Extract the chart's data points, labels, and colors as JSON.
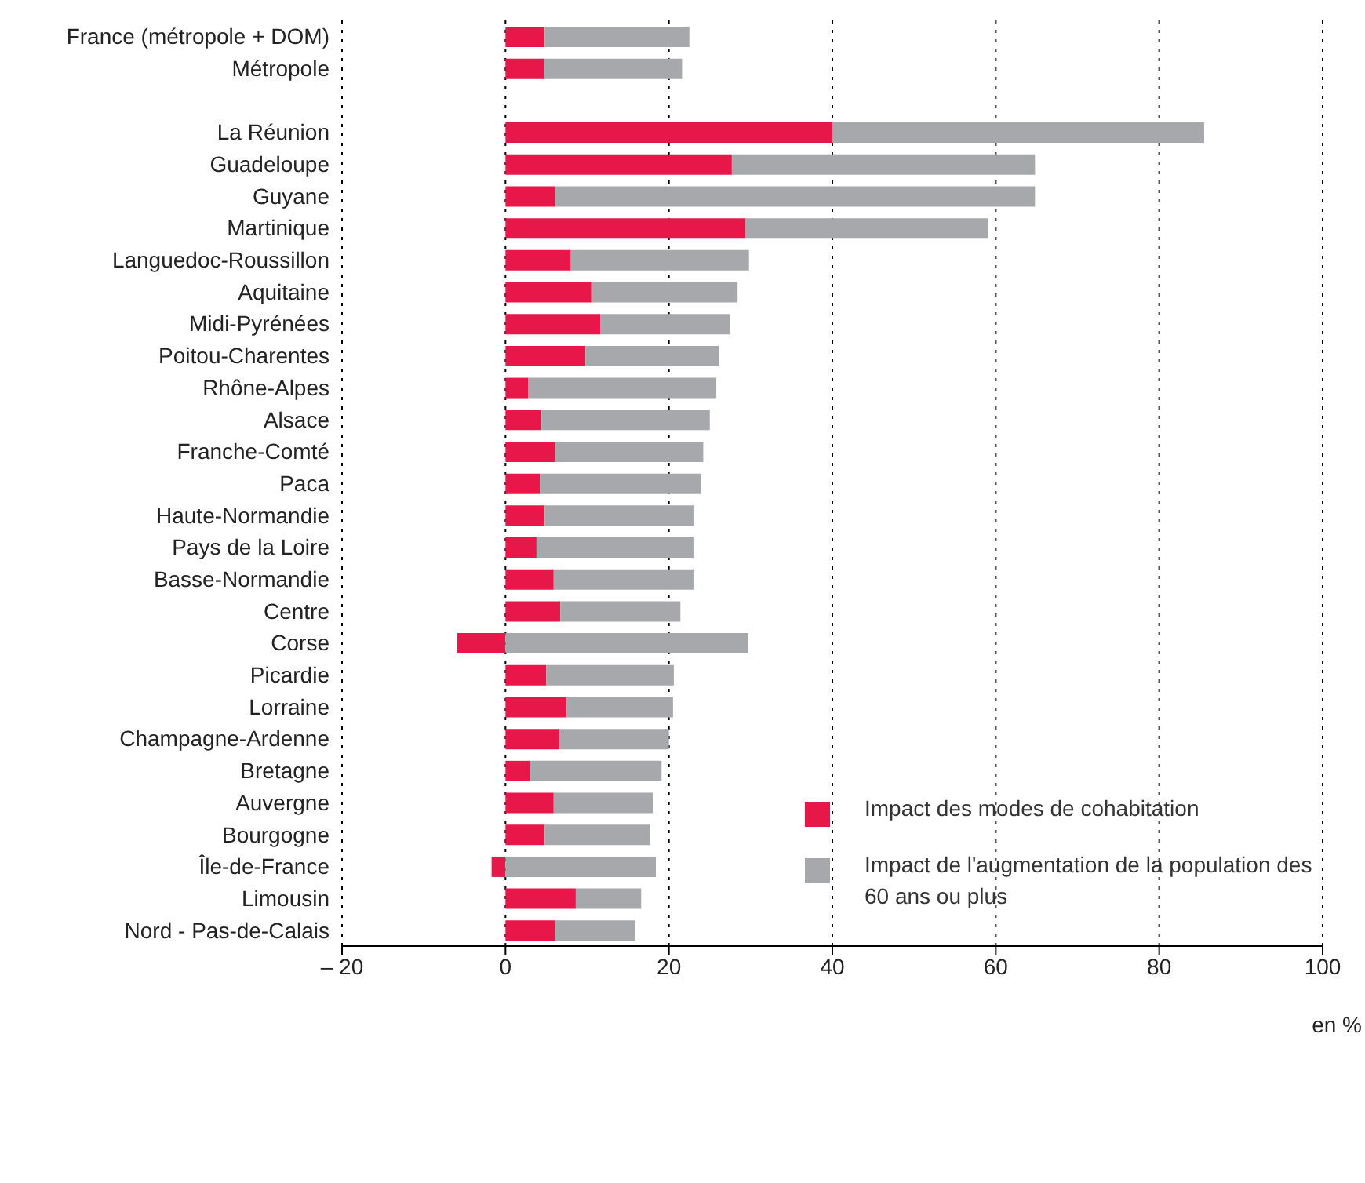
{
  "chart_data": {
    "type": "bar",
    "orientation": "horizontal",
    "stacked": true,
    "xlabel": "en %",
    "categories": [
      "France (métropole + DOM)",
      "Métropole",
      null,
      "La Réunion",
      "Guadeloupe",
      "Guyane",
      "Martinique",
      "Languedoc-Roussillon",
      "Aquitaine",
      "Midi-Pyrénées",
      "Poitou-Charentes",
      "Rhône-Alpes",
      "Alsace",
      "Franche-Comté",
      "Paca",
      "Haute-Normandie",
      "Pays de la Loire",
      "Basse-Normandie",
      "Centre",
      "Corse",
      "Picardie",
      "Lorraine",
      "Champagne-Ardenne",
      "Bretagne",
      "Auvergne",
      "Bourgogne",
      "Île-de-France",
      "Limousin",
      "Nord - Pas-de-Calais"
    ],
    "series": [
      {
        "name": "Impact des modes de cohabitation",
        "color": "#e8174a",
        "values": [
          4.8,
          4.7,
          null,
          40,
          27.7,
          6.1,
          29.4,
          8.0,
          10.6,
          11.6,
          9.8,
          2.8,
          4.4,
          6.1,
          4.2,
          4.8,
          3.8,
          5.9,
          6.7,
          -5.9,
          5.0,
          7.5,
          6.6,
          3.0,
          5.9,
          4.8,
          -1.7,
          8.6,
          6.1
        ]
      },
      {
        "name": "Impact de l'augmentation de la population des 60 ans ou plus",
        "color": "#a7a8ab",
        "values": [
          17.7,
          17.0,
          null,
          45.5,
          37.1,
          58.7,
          29.7,
          21.8,
          17.8,
          15.9,
          16.3,
          23.0,
          20.6,
          18.1,
          19.7,
          18.3,
          19.3,
          17.2,
          14.7,
          29.7,
          15.6,
          13.0,
          13.4,
          16.1,
          12.2,
          12.9,
          18.4,
          8.0,
          9.8
        ]
      }
    ],
    "xlim": [
      -20,
      100
    ],
    "xticks": [
      {
        "value": -20,
        "label": "– 20"
      },
      0,
      20,
      40,
      60,
      80,
      100
    ],
    "grid": "x",
    "legend": "bottom right"
  }
}
